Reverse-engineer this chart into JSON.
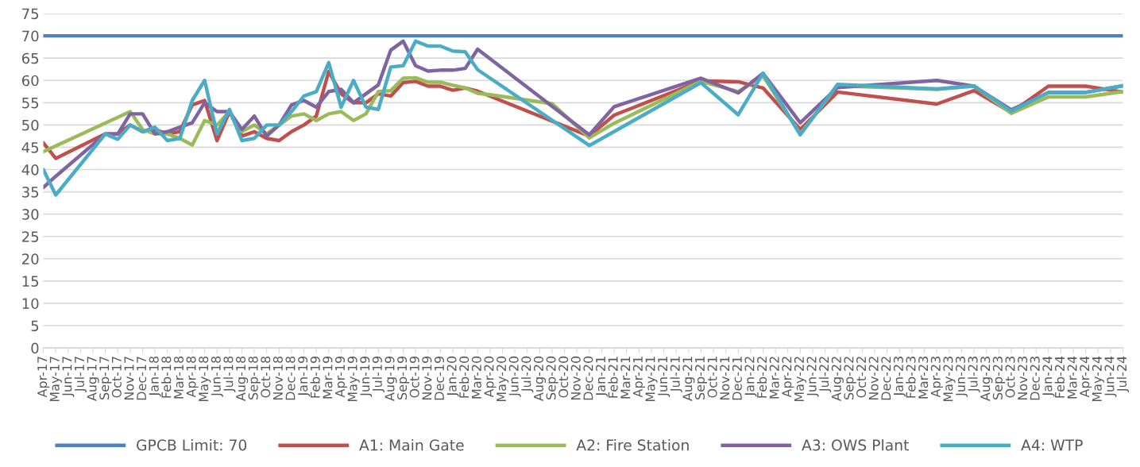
{
  "chart_data": {
    "type": "line",
    "categories": [
      "Apr-17",
      "May-17",
      "Jun-17",
      "Jul-17",
      "Aug-17",
      "Sep-17",
      "Oct-17",
      "Nov-17",
      "Dec-17",
      "Jan-18",
      "Feb-18",
      "Mar-18",
      "Apr-18",
      "May-18",
      "Jun-18",
      "Jul-18",
      "Aug-18",
      "Sep-18",
      "Oct-18",
      "Nov-18",
      "Dec-18",
      "Jan-19",
      "Feb-19",
      "Mar-19",
      "Apr-19",
      "May-19",
      "Jun-19",
      "Jul-19",
      "Aug-19",
      "Sep-19",
      "Oct-19",
      "Nov-19",
      "Dec-19",
      "Jan-20",
      "Feb-20",
      "Mar-20",
      "Apr-20",
      "May-20",
      "Jun-20",
      "Jul-20",
      "Aug-20",
      "Sep-20",
      "Oct-20",
      "Nov-20",
      "Dec-20",
      "Jan-21",
      "Feb-21",
      "Mar-21",
      "Apr-21",
      "May-21",
      "Jun-21",
      "Jul-21",
      "Aug-21",
      "Sep-21",
      "Oct-21",
      "Nov-21",
      "Dec-21",
      "Jan-22",
      "Feb-22",
      "Mar-22",
      "Apr-22",
      "May-22",
      "Jun-22",
      "Jul-22",
      "Aug-22",
      "Sep-22",
      "Oct-22",
      "Nov-22",
      "Dec-22",
      "Jan-23",
      "Feb-23",
      "Mar-23",
      "Apr-23",
      "May-23",
      "Jun-23",
      "Jul-23",
      "Aug-23",
      "Sep-23",
      "Oct-23",
      "Nov-23",
      "Dec-23",
      "Jan-24",
      "Feb-24",
      "Mar-24",
      "Apr-24",
      "May-24",
      "Jun-24",
      "Jul-24"
    ],
    "series": [
      {
        "name": "GPCB Limit: 70",
        "color": "#4f81bd",
        "values": [
          70,
          70,
          70,
          70,
          70,
          70,
          70,
          70,
          70,
          70,
          70,
          70,
          70,
          70,
          70,
          70,
          70,
          70,
          70,
          70,
          70,
          70,
          70,
          70,
          70,
          70,
          70,
          70,
          70,
          70,
          70,
          70,
          70,
          70,
          70,
          70,
          70,
          70,
          70,
          70,
          70,
          70,
          70,
          70,
          70,
          70,
          70,
          70,
          70,
          70,
          70,
          70,
          70,
          70,
          70,
          70,
          70,
          70,
          70,
          70,
          70,
          70,
          70,
          70,
          70,
          70,
          70,
          70,
          70,
          70,
          70,
          70,
          70,
          70,
          70,
          70,
          70,
          70,
          70,
          70,
          70,
          70,
          70,
          70,
          70,
          70,
          70,
          70
        ]
      },
      {
        "name": "A1: Main Gate",
        "color": "#c0504d",
        "values": [
          46,
          42.5,
          null,
          null,
          null,
          48,
          48,
          50,
          48.5,
          49,
          48,
          48.5,
          54.5,
          55.5,
          46.5,
          53,
          47.5,
          48.5,
          47,
          46.5,
          48.5,
          50,
          52,
          62,
          57,
          55,
          55,
          57,
          56.5,
          59.5,
          59.8,
          58.7,
          58.7,
          57.8,
          58.3,
          57.6,
          null,
          null,
          null,
          null,
          null,
          null,
          null,
          null,
          47.5,
          null,
          52.2,
          null,
          null,
          null,
          null,
          null,
          null,
          59.9,
          null,
          null,
          59.7,
          null,
          58.3,
          null,
          null,
          49,
          null,
          null,
          57.4,
          null,
          null,
          null,
          null,
          null,
          null,
          null,
          54.7,
          null,
          null,
          57.7,
          null,
          null,
          52.8,
          null,
          null,
          58.7,
          null,
          null,
          58.7,
          null,
          null,
          57.4
        ]
      },
      {
        "name": "A2: Fire Station",
        "color": "#9bbb59",
        "values": [
          44,
          null,
          null,
          null,
          null,
          null,
          null,
          53,
          49,
          48,
          48,
          47,
          45.5,
          51,
          50,
          53,
          48.5,
          50,
          48,
          50,
          52,
          52.5,
          51,
          52.5,
          53,
          51,
          52.5,
          57.5,
          57.7,
          60.5,
          60.6,
          59.6,
          59.6,
          58.9,
          58.3,
          57.1,
          56.8,
          null,
          null,
          null,
          null,
          54.8,
          null,
          null,
          47.1,
          null,
          50.4,
          null,
          null,
          null,
          null,
          null,
          null,
          59.8,
          null,
          null,
          57.5,
          null,
          61,
          null,
          null,
          48,
          null,
          null,
          58.8,
          null,
          null,
          null,
          null,
          null,
          null,
          null,
          58,
          null,
          null,
          58.7,
          null,
          null,
          52.6,
          null,
          null,
          56.3,
          null,
          null,
          56.3,
          null,
          null,
          57.5
        ]
      },
      {
        "name": "A3: OWS Plant",
        "color": "#8064a2",
        "values": [
          36,
          38.5,
          null,
          null,
          null,
          48,
          48,
          52.5,
          52.5,
          48,
          48.5,
          49.5,
          50.5,
          55,
          53,
          53,
          49,
          52,
          47.5,
          50,
          54.5,
          55.5,
          54,
          57.5,
          58,
          55,
          57,
          59,
          66.8,
          68.8,
          63.3,
          62.1,
          62.3,
          62.3,
          62.7,
          67,
          null,
          null,
          null,
          null,
          null,
          null,
          null,
          null,
          47.8,
          null,
          54.1,
          null,
          null,
          null,
          null,
          null,
          null,
          60.5,
          null,
          null,
          57.2,
          null,
          61.6,
          null,
          null,
          50.5,
          null,
          null,
          58.4,
          null,
          null,
          null,
          null,
          null,
          null,
          null,
          60,
          null,
          null,
          58.7,
          null,
          null,
          53.4,
          null,
          null,
          57.3,
          null,
          null,
          57.3,
          null,
          null,
          58.8
        ]
      },
      {
        "name": "A4: WTP",
        "color": "#4bacc6",
        "values": [
          40,
          34.3,
          null,
          null,
          null,
          48,
          46.8,
          50,
          48.5,
          49.5,
          46.5,
          47,
          55.5,
          60,
          48,
          53.5,
          46.5,
          47,
          50,
          50,
          53,
          56.5,
          57.5,
          64,
          54,
          60,
          54,
          53.5,
          63,
          63.3,
          68.8,
          67.7,
          67.7,
          66.6,
          66.4,
          62.4,
          null,
          null,
          null,
          null,
          null,
          null,
          null,
          null,
          45.4,
          null,
          null,
          null,
          null,
          null,
          null,
          null,
          null,
          59.5,
          null,
          null,
          52.3,
          null,
          61.6,
          null,
          null,
          47.8,
          null,
          null,
          59.1,
          null,
          null,
          null,
          null,
          null,
          null,
          null,
          58.1,
          null,
          null,
          58.8,
          null,
          null,
          53.1,
          null,
          null,
          57.3,
          null,
          null,
          57.3,
          null,
          null,
          58.8
        ]
      }
    ],
    "ylim": [
      0,
      75
    ],
    "yticks": [
      0,
      5,
      10,
      15,
      20,
      25,
      30,
      35,
      40,
      45,
      50,
      55,
      60,
      65,
      70,
      75
    ],
    "grid": "y",
    "legend": "bottom",
    "marker": "none",
    "line_style": "solid"
  }
}
